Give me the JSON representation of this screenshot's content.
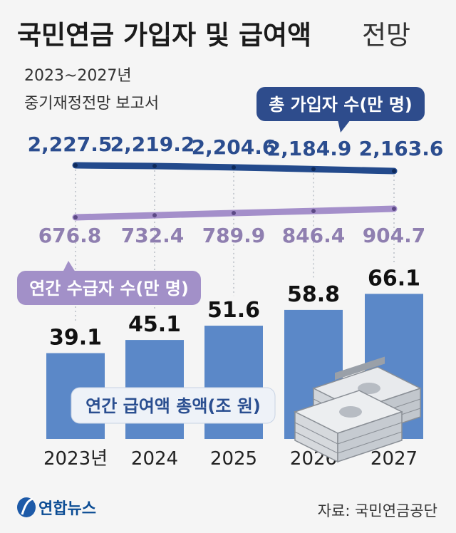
{
  "title": {
    "main": "국민연금 가입자 및 급여액",
    "suffix": "전망"
  },
  "subtitle": {
    "line1": "2023~2027년",
    "line2": "중기재정전망 보고서"
  },
  "source": "자료: 국민연금공단",
  "logo": "연합뉴스",
  "colors": {
    "subscribers_line": "#234a8c",
    "recipients_line": "#a48fca",
    "bars": "#5b88c8",
    "background": "#f5f5f5"
  },
  "chart_data": {
    "type": "bar",
    "categories": [
      "2023년",
      "2024",
      "2025",
      "2026",
      "2027"
    ],
    "series": [
      {
        "name": "총 가입자 수(만 명)",
        "type": "line",
        "values": [
          2227.5,
          2219.2,
          2204.6,
          2184.9,
          2163.6
        ],
        "labels": [
          "2,227.5",
          "2,219.2",
          "2,204.6",
          "2,184.9",
          "2,163.6"
        ]
      },
      {
        "name": "연간 수급자 수(만 명)",
        "type": "line",
        "values": [
          676.8,
          732.4,
          789.9,
          846.4,
          904.7
        ],
        "labels": [
          "676.8",
          "732.4",
          "789.9",
          "846.4",
          "904.7"
        ]
      },
      {
        "name": "연간 급여액 총액(조 원)",
        "type": "bar",
        "values": [
          39.1,
          45.1,
          51.6,
          58.8,
          66.1
        ],
        "labels": [
          "39.1",
          "45.1",
          "51.6",
          "58.8",
          "66.1"
        ]
      }
    ],
    "grid": false
  }
}
